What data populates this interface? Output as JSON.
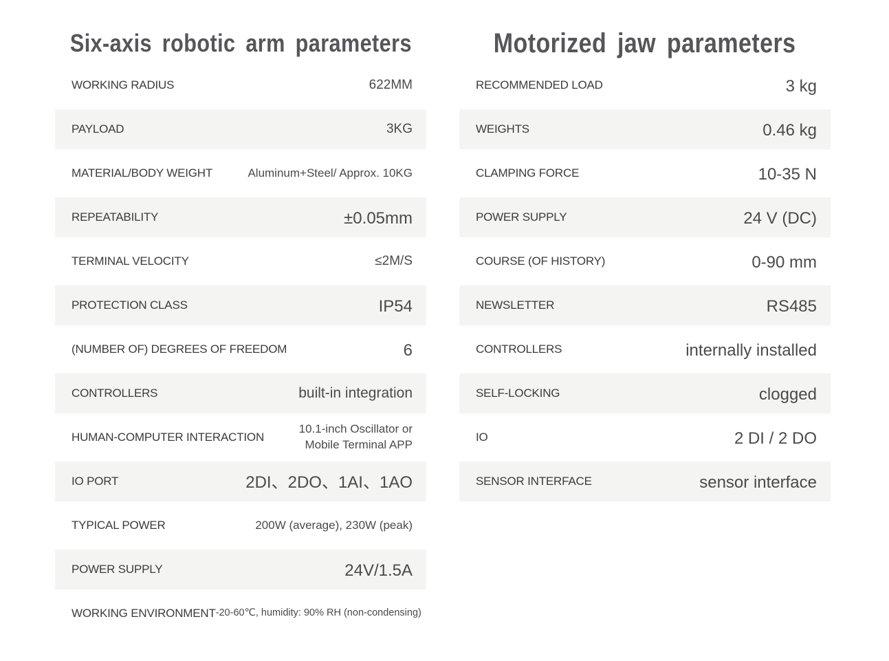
{
  "colors": {
    "page_background": "#ffffff",
    "row_alt_background": "#f4f4f2",
    "title_color": "#55555a",
    "label_color": "#3b3b3b",
    "value_color": "#4a4a4a"
  },
  "left_table": {
    "title": "Six-axis robotic arm parameters",
    "rows": [
      {
        "label": "WORKING RADIUS",
        "value": "622MM",
        "size": "md"
      },
      {
        "label": "PAYLOAD",
        "value": "3KG",
        "size": "md"
      },
      {
        "label": "MATERIAL/BODY WEIGHT",
        "value": "Aluminum+Steel/ Approx. 10KG",
        "size": "sm"
      },
      {
        "label": "REPEATABILITY",
        "value": "±0.05mm",
        "size": "lg"
      },
      {
        "label": "TERMINAL VELOCITY",
        "value": "≤2M/S",
        "size": "md"
      },
      {
        "label": "PROTECTION CLASS",
        "value": "IP54",
        "size": "lg"
      },
      {
        "label": "(NUMBER OF) DEGREES OF FREEDOM",
        "value": "6",
        "size": "lg"
      },
      {
        "label": "CONTROLLERS",
        "value": "built-in integration",
        "size": "md2"
      },
      {
        "label": "HUMAN-COMPUTER INTERACTION",
        "value": "10.1-inch Oscillator or Mobile Terminal APP",
        "size": "sm"
      },
      {
        "label": "IO PORT",
        "value": "2DI、2DO、1AI、1AO",
        "size": "lg"
      },
      {
        "label": "TYPICAL POWER",
        "value": "200W (average), 230W (peak)",
        "size": "sm"
      },
      {
        "label": "POWER SUPPLY",
        "value": "24V/1.5A",
        "size": "lg"
      },
      {
        "label": "WORKING ENVIRONMENT",
        "value": "-20-60℃, humidity: 90% RH (non-condensing)",
        "size": "xs"
      }
    ]
  },
  "right_table": {
    "title": "Motorized jaw parameters",
    "rows": [
      {
        "label": "RECOMMENDED LOAD",
        "value": "3 kg",
        "size": "lg"
      },
      {
        "label": "WEIGHTS",
        "value": "0.46 kg",
        "size": "lg"
      },
      {
        "label": "CLAMPING FORCE",
        "value": "10-35 N",
        "size": "lg"
      },
      {
        "label": "POWER SUPPLY",
        "value": "24 V (DC)",
        "size": "lg"
      },
      {
        "label": "COURSE (OF HISTORY)",
        "value": "0-90 mm",
        "size": "lg"
      },
      {
        "label": "NEWSLETTER",
        "value": "RS485",
        "size": "lg"
      },
      {
        "label": "CONTROLLERS",
        "value": "internally installed",
        "size": "lg"
      },
      {
        "label": "SELF-LOCKING",
        "value": "clogged",
        "size": "lg"
      },
      {
        "label": "IO",
        "value": "2 DI / 2 DO",
        "size": "lg"
      },
      {
        "label": "SENSOR INTERFACE",
        "value": "sensor interface",
        "size": "lg"
      }
    ]
  }
}
